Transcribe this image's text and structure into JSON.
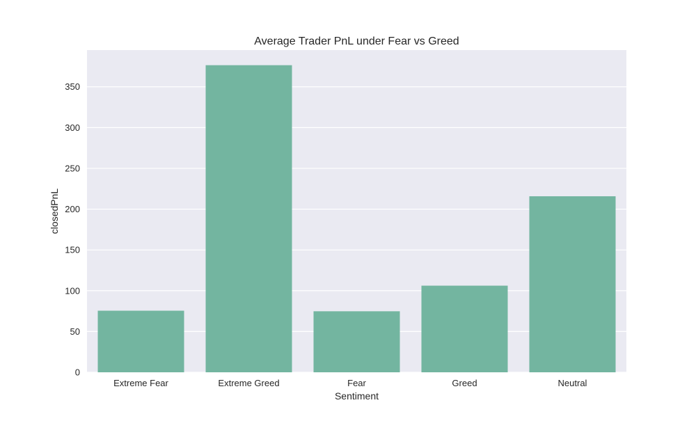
{
  "chart_data": {
    "type": "bar",
    "title": "Average Trader PnL under Fear vs Greed",
    "xlabel": "Sentiment",
    "ylabel": "closedPnL",
    "categories": [
      "Extreme Fear",
      "Extreme Greed",
      "Fear",
      "Greed",
      "Neutral"
    ],
    "values": [
      75.5,
      376.5,
      74.8,
      106.2,
      215.8
    ],
    "ylim": [
      0,
      395
    ],
    "yticks": [
      0,
      50,
      100,
      150,
      200,
      250,
      300,
      350
    ],
    "grid": true,
    "legend": "none",
    "colors": {
      "bar": "#73b5a0",
      "plot_background": "#eaeaf2",
      "grid": "#ffffff",
      "text": "#262626"
    }
  }
}
